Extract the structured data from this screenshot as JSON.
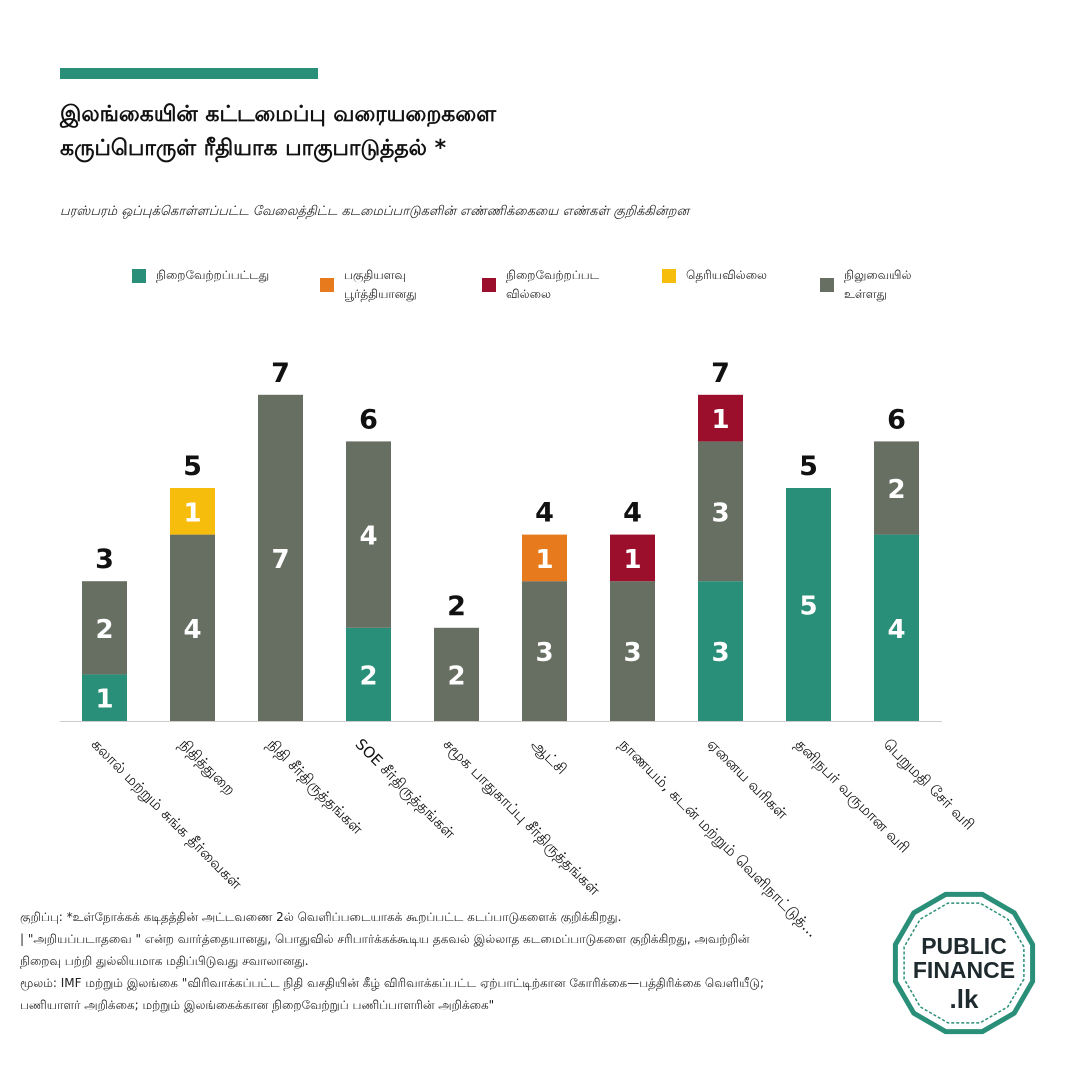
{
  "title_lines": [
    "இலங்கையின் கட்டமைப்பு வரையறைகளை",
    "கருப்பொருள் ரீதியாக பாகுபாடுத்தல் *"
  ],
  "subtitle": "பரஸ்பரம் ஒப்புக்கொள்ளப்பட்ட வேலைத்திட்ட கடமைப்பாடுகளின் எண்ணிக்கையை எண்கள் குறிக்கின்றன",
  "colors": {
    "accent": "#2a8f78",
    "completed": "#2a8f78",
    "partially": "#e87a1e",
    "not_completed": "#9b0f2d",
    "unknown": "#f7bd0d",
    "pending": "#676f63",
    "axis": "#cccccc",
    "logo_ring": "#2a8f78"
  },
  "legend": [
    {
      "key": "completed",
      "label": "நிறைவேற்றப்பட்டது"
    },
    {
      "key": "partially",
      "label": "பகுதியளவு\nபூர்த்தியானது"
    },
    {
      "key": "not_completed",
      "label": "நிறைவேற்றப்பட\nவில்லை"
    },
    {
      "key": "unknown",
      "label": "தெரியவில்லை"
    },
    {
      "key": "pending",
      "label": "நிலுவையில்\nஉள்ளது"
    }
  ],
  "chart_data": {
    "type": "bar",
    "stacked": true,
    "title": "இலங்கையின் கட்டமைப்பு வரையறைகளை கருப்பொருள் ரீதியாக பாகுபாடுத்தல் *",
    "categories": [
      "கலால் மற்றும் சுங்க தீர்வைகள்",
      "நிதித்துறை",
      "நிதி சீர்திருத்தங்கள்",
      "SOE சீர்திருத்தங்கள்",
      "சமூக பாதுகாப்பு சீர்திருத்தங்கள்",
      "ஆட்சி",
      "நாணயம், கடன் மற்றும் வெளிநாட்டுத்...",
      "ஏனைய வரிகள்",
      "தனிநபர் வருமான வரி",
      "பெறுமதி சேர் வரி"
    ],
    "series": [
      {
        "key": "completed",
        "name": "நிறைவேற்றப்பட்டது",
        "values": [
          1,
          0,
          0,
          2,
          0,
          0,
          0,
          3,
          5,
          4
        ]
      },
      {
        "key": "pending",
        "name": "நிலுவையில் உள்ளது",
        "values": [
          2,
          4,
          7,
          4,
          2,
          3,
          3,
          3,
          0,
          2
        ]
      },
      {
        "key": "unknown",
        "name": "தெரியவில்லை",
        "values": [
          0,
          1,
          0,
          0,
          0,
          0,
          0,
          0,
          0,
          0
        ]
      },
      {
        "key": "partially",
        "name": "பகுதியளவு பூர்த்தியானது",
        "values": [
          0,
          0,
          0,
          0,
          0,
          1,
          0,
          0,
          0,
          0
        ]
      },
      {
        "key": "not_completed",
        "name": "நிறைவேற்றப்படவில்லை",
        "values": [
          0,
          0,
          0,
          0,
          0,
          0,
          1,
          1,
          0,
          0
        ]
      }
    ],
    "totals": [
      3,
      5,
      7,
      6,
      2,
      4,
      4,
      7,
      5,
      6
    ],
    "ylim": [
      0,
      7
    ],
    "grid": false,
    "legend_position": "top"
  },
  "footnotes": [
    "குறிப்பு: *உள்நோக்கக் கடிதத்தின் அட்டவணை 2ல் வெளிப்படையாகக் கூறப்பட்ட கடப்பாடுகளைக் குறிக்கிறது.",
    "| \"அறியப்படாதவை \" என்ற வார்த்தையானது, பொதுவில் சரிபார்க்கக்கூடிய தகவல் இல்லாத கடமைப்பாடுகளை குறிக்கிறது, அவற்றின் நிறைவு பற்றி துல்லியமாக மதிப்பிடுவது சவாலானது.",
    "மூலம்: IMF மற்றும் இலங்கை \"விரிவாக்கப்பட்ட நிதி வசதியின் கீழ் விரிவாக்கப்பட்ட ஏற்பாட்டிற்கான கோரிக்கை—பத்திரிக்கை வெளியீடு; பணியாளர் அறிக்கை; மற்றும் இலங்கைக்கான நிறைவேற்றுப் பணிப்பாளரின் அறிக்கை\""
  ],
  "logo": {
    "line1": "PUBLIC",
    "line2": "FINANCE",
    "line3": ".lk"
  }
}
